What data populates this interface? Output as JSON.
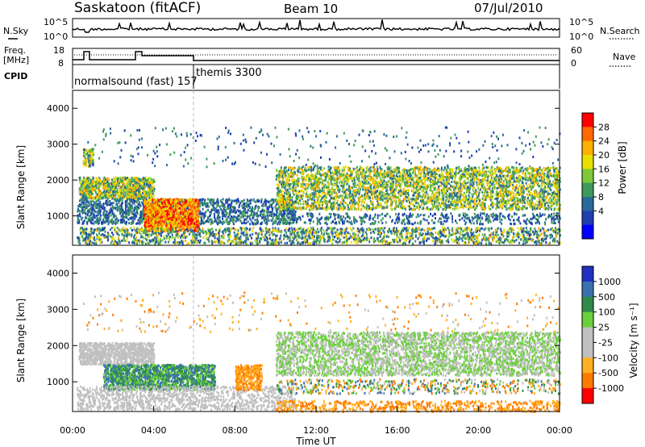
{
  "header": {
    "title": "Saskatoon (fitACF)",
    "beam": "Beam 10",
    "date": "07/Jul/2010"
  },
  "top_panels": {
    "nsky_label": "N.Sky",
    "nsky_ticks": [
      "10^5",
      "10^0"
    ],
    "nsearch_label": "N.Search",
    "nsearch_ticks": [
      "10^5",
      "10^0"
    ],
    "freq_label_1": "Freq.",
    "freq_label_2": "[MHz]",
    "freq_ticks": [
      "18",
      "8"
    ],
    "nave_label": "Nave",
    "nave_ticks": [
      "60",
      "0"
    ],
    "cpid_label": "CPID",
    "cpid_entries": [
      {
        "text": "normalsound (fast) 157",
        "start_hour": 0.0
      },
      {
        "text": "themis 3300",
        "start_hour": 6.0
      }
    ]
  },
  "chart_data": [
    {
      "type": "heatmap",
      "name": "power",
      "ylabel": "Slant Range [km]",
      "yticks": [
        1000,
        2000,
        3000,
        4000
      ],
      "ylim": [
        180,
        4500
      ],
      "x_ticks": [
        "00:00",
        "04:00",
        "08:00",
        "12:00",
        "16:00",
        "20:00",
        "00:00"
      ],
      "xlim_hours": [
        0,
        24
      ],
      "colorbar_label": "Power [dB]",
      "colorbar_ticks": [
        "28",
        "24",
        "20",
        "16",
        "12",
        "8",
        "4"
      ],
      "colorbar_colors": [
        "#ff0000",
        "#ff6a00",
        "#ffb000",
        "#e8e000",
        "#7ec83a",
        "#3d9a5a",
        "#2a6a9a",
        "#1f3fb0",
        "#0000ff"
      ],
      "vline_hour": 6.0
    },
    {
      "type": "heatmap",
      "name": "velocity",
      "ylabel": "Slant Range [km]",
      "yticks": [
        1000,
        2000,
        3000,
        4000
      ],
      "ylim": [
        180,
        4500
      ],
      "x_ticks": [
        "00:00",
        "04:00",
        "08:00",
        "12:00",
        "16:00",
        "20:00",
        "00:00"
      ],
      "xlim_hours": [
        0,
        24
      ],
      "xlabel": "Time UT",
      "colorbar_label": "Velocity [m s⁻¹]",
      "colorbar_ticks": [
        "1000",
        "500",
        "100",
        "25",
        "-25",
        "-100",
        "-500",
        "-1000"
      ],
      "colorbar_colors": [
        "#2030c0",
        "#3a70b0",
        "#2e8c4a",
        "#6ad03a",
        "#c0c0c0",
        "#c0c0c0",
        "#ffb020",
        "#ff7a00",
        "#ff0000"
      ],
      "vline_hour": 6.0
    }
  ],
  "colors": {
    "ground_scatter": "#c0c0c0",
    "line": "#000000"
  }
}
